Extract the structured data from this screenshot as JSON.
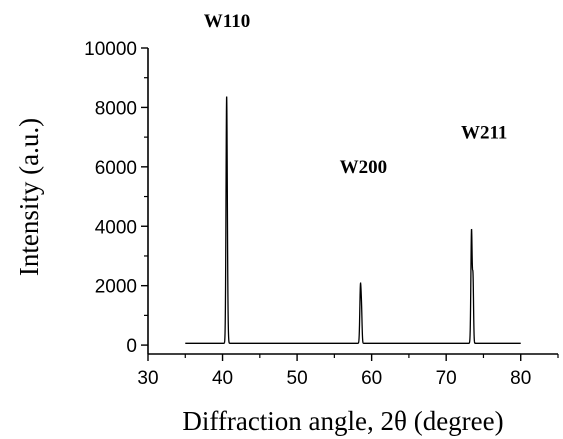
{
  "chart_data": {
    "type": "line",
    "title": "",
    "xlabel": "Diffraction angle, 2θ (degree)",
    "ylabel": "Intensity (a.u.)",
    "xlim": [
      30,
      85
    ],
    "ylim": [
      -300,
      10000
    ],
    "xticks": [
      30,
      40,
      50,
      60,
      70,
      80
    ],
    "yticks": [
      0,
      2000,
      4000,
      6000,
      8000,
      10000
    ],
    "x_tick_labels": [
      "30",
      "40",
      "50",
      "60",
      "70",
      "80"
    ],
    "y_tick_labels": [
      "0",
      "2000",
      "4000",
      "6000",
      "8000",
      "10000"
    ],
    "grid": false,
    "legend": "none",
    "line_color": "#000000",
    "x_range": [
      35,
      80
    ],
    "baseline": 60,
    "peaks": [
      {
        "label": "W110",
        "x": 40.55,
        "y": 8250,
        "halfwidth": 0.18
      },
      {
        "label": "W200",
        "x": 58.5,
        "y": 1900,
        "halfwidth": 0.18
      },
      {
        "label": "W211",
        "x": 73.4,
        "y": 3800,
        "halfwidth": 0.18
      }
    ],
    "shoulders": [
      {
        "x": 40.7,
        "y": 500,
        "halfwidth": 0.15
      },
      {
        "x": 58.65,
        "y": 900,
        "halfwidth": 0.15
      },
      {
        "x": 73.6,
        "y": 2100,
        "halfwidth": 0.15
      }
    ],
    "annotations": [
      {
        "text": "W110",
        "x": 40.6,
        "y": 10700
      },
      {
        "text": "W200",
        "x": 58.9,
        "y": 5800
      },
      {
        "text": "W211",
        "x": 75.1,
        "y": 6950
      }
    ]
  }
}
